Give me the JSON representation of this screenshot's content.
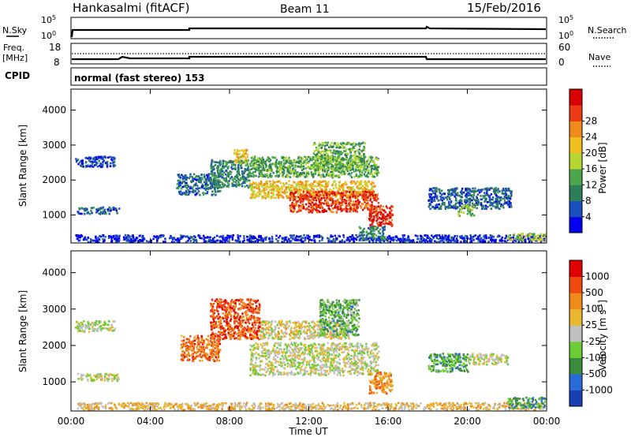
{
  "header": {
    "station": "Hankasalmi (fitACF)",
    "beam": "Beam 11",
    "date": "15/Feb/2016"
  },
  "nsky_panel": {
    "left_label": "N.Sky",
    "right_label": "N.Search",
    "left_ticks": [
      "10^5",
      "10^0"
    ],
    "right_ticks": [
      "10^5",
      "10^0"
    ]
  },
  "freq_panel": {
    "left_label_line1": "Freq.",
    "left_label_line2": "[MHz]",
    "right_label": "Nave",
    "left_ticks": [
      "18",
      "8"
    ],
    "right_ticks": [
      "60",
      "0"
    ]
  },
  "cpid": {
    "label": "CPID",
    "text": "normal (fast stereo) 153"
  },
  "chart_data": [
    {
      "type": "heatmap",
      "name": "power",
      "ylabel": "Slant Range [km]",
      "ylim": [
        200,
        4600
      ],
      "yticks": [
        "1000",
        "2000",
        "3000",
        "4000"
      ],
      "ytick_values": [
        1000,
        2000,
        3000,
        4000
      ],
      "xlim": [
        0,
        24
      ],
      "colorbar": {
        "label": "Power [dB]",
        "ticks": [
          "4",
          "8",
          "12",
          "16",
          "20",
          "24",
          "28"
        ],
        "colors": [
          "#0000ee",
          "#1b4fbd",
          "#2e7d5b",
          "#4ca64c",
          "#b5d633",
          "#f0c020",
          "#f08a1a",
          "#ec3b14",
          "#d80000"
        ]
      },
      "regions": [
        {
          "t0": 0.2,
          "t1": 23.9,
          "r0": 250,
          "r1": 450,
          "level": 0.1
        },
        {
          "t0": 0.2,
          "t1": 2.2,
          "r0": 2400,
          "r1": 2700,
          "level": 0.15
        },
        {
          "t0": 0.3,
          "t1": 2.4,
          "r0": 1050,
          "r1": 1250,
          "level": 0.22
        },
        {
          "t0": 5.3,
          "t1": 7.5,
          "r0": 1600,
          "r1": 2200,
          "level": 0.22
        },
        {
          "t0": 7.0,
          "t1": 9.0,
          "r0": 1800,
          "r1": 2600,
          "level": 0.3
        },
        {
          "t0": 8.2,
          "t1": 8.9,
          "r0": 2500,
          "r1": 2900,
          "level": 0.55
        },
        {
          "t0": 9.0,
          "t1": 15.5,
          "r0": 2100,
          "r1": 2700,
          "level": 0.38
        },
        {
          "t0": 12.2,
          "t1": 14.8,
          "r0": 2300,
          "r1": 3100,
          "level": 0.4
        },
        {
          "t0": 9.0,
          "t1": 15.3,
          "r0": 1500,
          "r1": 2000,
          "level": 0.62
        },
        {
          "t0": 11.0,
          "t1": 15.5,
          "r0": 1100,
          "r1": 1700,
          "level": 0.85
        },
        {
          "t0": 15.0,
          "t1": 16.2,
          "r0": 700,
          "r1": 1300,
          "level": 0.9
        },
        {
          "t0": 14.5,
          "t1": 15.8,
          "r0": 300,
          "r1": 700,
          "level": 0.3
        },
        {
          "t0": 18.0,
          "t1": 22.2,
          "r0": 1200,
          "r1": 1800,
          "level": 0.2
        },
        {
          "t0": 19.5,
          "t1": 20.3,
          "r0": 1000,
          "r1": 1300,
          "level": 0.45
        },
        {
          "t0": 22.0,
          "t1": 23.9,
          "r0": 300,
          "r1": 500,
          "level": 0.5
        }
      ]
    },
    {
      "type": "heatmap",
      "name": "velocity",
      "ylabel": "Slant Range [km]",
      "ylim": [
        200,
        4600
      ],
      "yticks": [
        "1000",
        "2000",
        "3000",
        "4000"
      ],
      "ytick_values": [
        1000,
        2000,
        3000,
        4000
      ],
      "xlabel": "Time UT",
      "xlim": [
        0,
        24
      ],
      "xticks": [
        "00:00",
        "04:00",
        "08:00",
        "12:00",
        "16:00",
        "20:00",
        "00:00"
      ],
      "xtick_values": [
        0,
        4,
        8,
        12,
        16,
        20,
        24
      ],
      "colorbar": {
        "label": "Velocity [m s^-1]",
        "ticks": [
          "1000",
          "500",
          "100",
          "25",
          "-25",
          "-100",
          "-500",
          "-1000"
        ],
        "colors": [
          "#1a3fb3",
          "#2a6ad6",
          "#3d8c3d",
          "#6ccc33",
          "#c0c0c0",
          "#e8b830",
          "#f08a1a",
          "#ee4a10",
          "#e00000"
        ]
      },
      "regions": [
        {
          "t0": 0.2,
          "t1": 23.9,
          "r0": 250,
          "r1": 450,
          "level": 0.6
        },
        {
          "t0": 0.3,
          "t1": 2.4,
          "r0": 1050,
          "r1": 1250,
          "level": 0.5
        },
        {
          "t0": 0.2,
          "t1": 2.2,
          "r0": 2400,
          "r1": 2700,
          "level": 0.5
        },
        {
          "t0": 5.5,
          "t1": 7.5,
          "r0": 1600,
          "r1": 2300,
          "level": 0.78
        },
        {
          "t0": 7.0,
          "t1": 9.5,
          "r0": 2200,
          "r1": 3300,
          "level": 0.82
        },
        {
          "t0": 9.0,
          "t1": 15.5,
          "r0": 1200,
          "r1": 2100,
          "level": 0.5
        },
        {
          "t0": 9.5,
          "t1": 14.0,
          "r0": 2200,
          "r1": 2700,
          "level": 0.55
        },
        {
          "t0": 12.5,
          "t1": 14.5,
          "r0": 2300,
          "r1": 3300,
          "level": 0.35
        },
        {
          "t0": 15.0,
          "t1": 16.2,
          "r0": 700,
          "r1": 1300,
          "level": 0.7
        },
        {
          "t0": 18.0,
          "t1": 20.0,
          "r0": 1300,
          "r1": 1800,
          "level": 0.3
        },
        {
          "t0": 20.0,
          "t1": 22.0,
          "r0": 1500,
          "r1": 1800,
          "level": 0.5
        },
        {
          "t0": 22.0,
          "t1": 23.9,
          "r0": 300,
          "r1": 600,
          "level": 0.3
        }
      ]
    }
  ]
}
